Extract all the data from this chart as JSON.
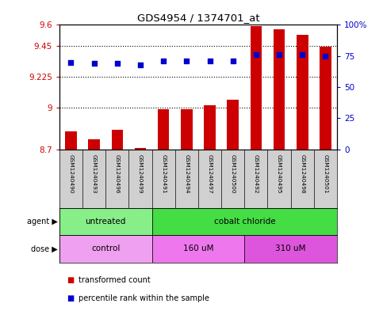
{
  "title": "GDS4954 / 1374701_at",
  "samples": [
    "GSM1240490",
    "GSM1240493",
    "GSM1240496",
    "GSM1240499",
    "GSM1240491",
    "GSM1240494",
    "GSM1240497",
    "GSM1240500",
    "GSM1240492",
    "GSM1240495",
    "GSM1240498",
    "GSM1240501"
  ],
  "bar_values": [
    8.83,
    8.77,
    8.84,
    8.71,
    8.99,
    8.99,
    9.02,
    9.06,
    9.59,
    9.57,
    9.53,
    9.44
  ],
  "percentile_values": [
    70,
    69,
    69,
    68,
    71,
    71,
    71,
    71,
    76,
    76,
    76,
    75
  ],
  "bar_color": "#cc0000",
  "percentile_color": "#0000cc",
  "ylim_left": [
    8.7,
    9.6
  ],
  "ylim_right": [
    0,
    100
  ],
  "yticks_left": [
    8.7,
    9.0,
    9.225,
    9.45,
    9.6
  ],
  "ytick_labels_left": [
    "8.7",
    "9",
    "9.225",
    "9.45",
    "9.6"
  ],
  "yticks_right_vals": [
    0,
    25,
    50,
    75,
    100
  ],
  "ytick_labels_right": [
    "0",
    "25",
    "50",
    "75",
    "100%"
  ],
  "hlines": [
    9.0,
    9.225,
    9.45
  ],
  "agent_groups": [
    {
      "label": "untreated",
      "start": 0,
      "end": 4,
      "color": "#88ee88"
    },
    {
      "label": "cobalt chloride",
      "start": 4,
      "end": 12,
      "color": "#44dd44"
    }
  ],
  "dose_groups": [
    {
      "label": "control",
      "start": 0,
      "end": 4,
      "color": "#f0a0f0"
    },
    {
      "label": "160 uM",
      "start": 4,
      "end": 8,
      "color": "#ee77ee"
    },
    {
      "label": "310 uM",
      "start": 8,
      "end": 12,
      "color": "#dd55dd"
    }
  ],
  "sample_box_color": "#d0d0d0",
  "legend_bar_label": "transformed count",
  "legend_pct_label": "percentile rank within the sample"
}
